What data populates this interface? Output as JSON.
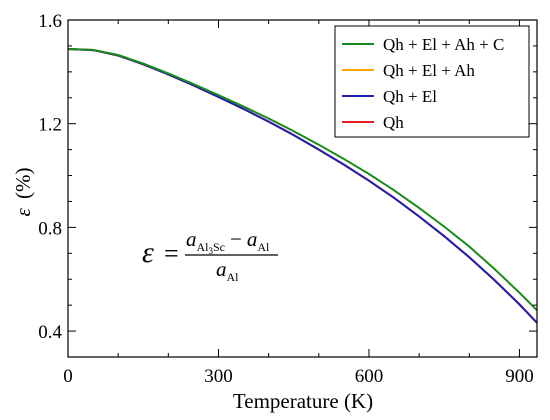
{
  "chart_data": {
    "type": "line",
    "xlabel": "Temperature (K)",
    "ylabel_symbol": "ε",
    "ylabel_unit": "(%)",
    "xlim": [
      0,
      935
    ],
    "ylim": [
      0.3,
      1.6
    ],
    "xticks": [
      0,
      300,
      600,
      900
    ],
    "xtick_labels": [
      "0",
      "300",
      "600",
      "900"
    ],
    "yticks": [
      0.4,
      0.8,
      1.2,
      1.6
    ],
    "ytick_labels": [
      "0.4",
      "0.8",
      "1.2",
      "1.6"
    ],
    "grid": false,
    "legend_position": "top-right",
    "series": [
      {
        "name": "Qh + El + Ah + C",
        "color": "#1a8a1a",
        "x": [
          0,
          50,
          100,
          150,
          200,
          250,
          300,
          350,
          400,
          450,
          500,
          550,
          600,
          650,
          700,
          750,
          800,
          850,
          900,
          935
        ],
        "y": [
          1.488,
          1.485,
          1.465,
          1.432,
          1.394,
          1.353,
          1.31,
          1.266,
          1.22,
          1.171,
          1.119,
          1.064,
          1.006,
          0.943,
          0.875,
          0.803,
          0.726,
          0.64,
          0.548,
          0.48
        ]
      },
      {
        "name": "Qh + El + Ah",
        "color": "#ffa500",
        "x": [
          0,
          50,
          100,
          150,
          200,
          250,
          300,
          350,
          400,
          450,
          500,
          550,
          600,
          650,
          700,
          750,
          800,
          850,
          900,
          935
        ],
        "y": [
          1.488,
          1.484,
          1.463,
          1.429,
          1.39,
          1.348,
          1.303,
          1.257,
          1.208,
          1.156,
          1.1,
          1.042,
          0.98,
          0.914,
          0.842,
          0.766,
          0.685,
          0.597,
          0.503,
          0.432
        ]
      },
      {
        "name": "Qh + El",
        "color": "#1f1fb4",
        "x": [
          0,
          50,
          100,
          150,
          200,
          250,
          300,
          350,
          400,
          450,
          500,
          550,
          600,
          650,
          700,
          750,
          800,
          850,
          900,
          935
        ],
        "y": [
          1.488,
          1.484,
          1.463,
          1.429,
          1.39,
          1.348,
          1.303,
          1.257,
          1.208,
          1.156,
          1.1,
          1.042,
          0.98,
          0.914,
          0.842,
          0.766,
          0.685,
          0.597,
          0.503,
          0.432
        ]
      },
      {
        "name": "Qh",
        "color": "#e02020",
        "x": [
          0,
          50,
          100,
          150,
          200,
          250,
          300,
          350,
          400,
          450,
          500,
          550,
          600,
          650,
          700,
          750,
          800,
          850,
          900,
          935
        ],
        "y": [
          1.488,
          1.484,
          1.463,
          1.429,
          1.39,
          1.348,
          1.303,
          1.257,
          1.208,
          1.156,
          1.1,
          1.042,
          0.98,
          0.914,
          0.842,
          0.766,
          0.685,
          0.597,
          0.503,
          0.432
        ]
      }
    ],
    "annotation": {
      "lhs": "ε",
      "equals": "=",
      "num_a": "a",
      "num_sub1": "Al",
      "num_sub1_sub": "3",
      "num_sub1_rest": "Sc",
      "minus": "−",
      "num_b": "a",
      "num_sub2": "Al",
      "den_a": "a",
      "den_sub": "Al"
    }
  }
}
